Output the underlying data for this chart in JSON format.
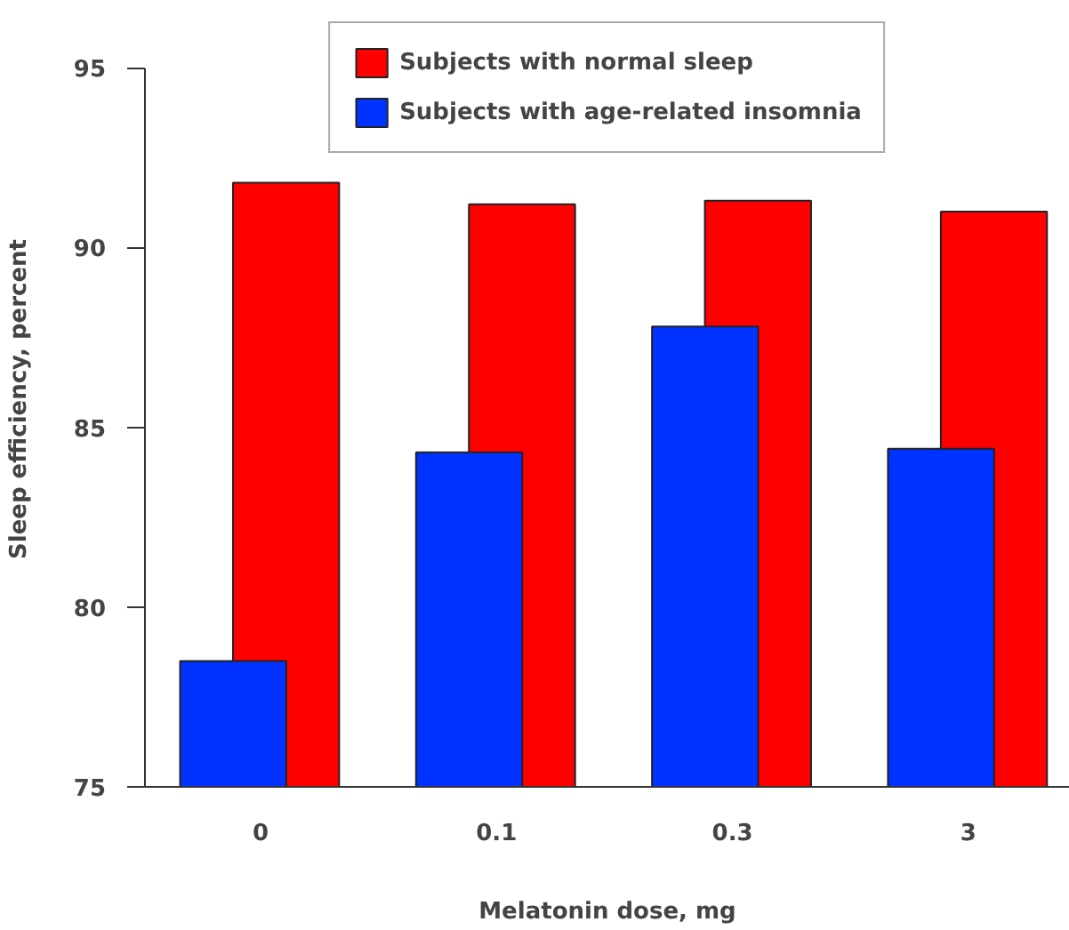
{
  "chart_data": {
    "type": "bar",
    "xlabel": "Melatonin dose, mg",
    "ylabel": "Sleep efficiency, percent",
    "categories": [
      "0",
      "0.1",
      "0.3",
      "3"
    ],
    "series": [
      {
        "name": "Subjects with normal sleep",
        "color": "#ff0000",
        "values": [
          91.8,
          91.2,
          91.3,
          91.0
        ]
      },
      {
        "name": "Subjects with age-related insomnia",
        "color": "#0033ff",
        "values": [
          78.5,
          84.3,
          87.8,
          84.4
        ]
      }
    ],
    "ylim": [
      75,
      95
    ],
    "yticks": [
      75,
      80,
      85,
      90,
      95
    ],
    "grid": false,
    "legend": "top"
  }
}
